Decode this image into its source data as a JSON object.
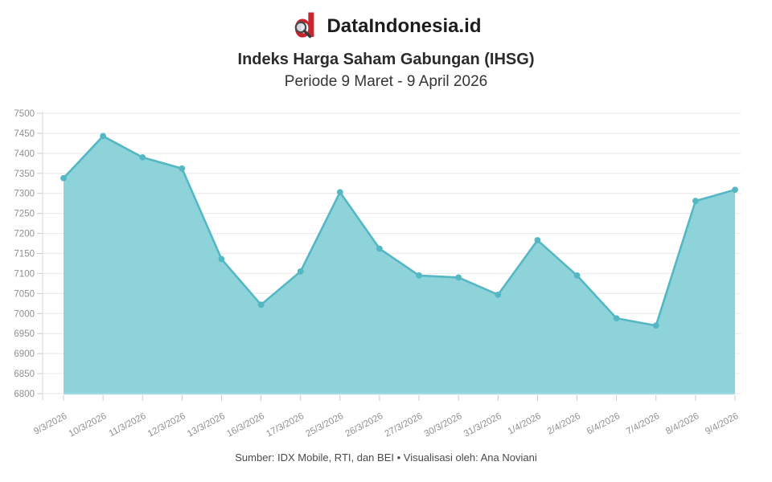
{
  "brand": {
    "name": "DataIndonesia.id",
    "logo_letter": "d",
    "logo_color": "#c62630"
  },
  "header": {
    "title": "Indeks Harga Saham Gabungan (IHSG)",
    "subtitle": "Periode 9 Maret - 9 April 2026"
  },
  "footer": {
    "source": "Sumber: IDX Mobile, RTI, dan BEI • Visualisasi oleh: Ana Noviani"
  },
  "chart_data": {
    "type": "area",
    "title": "Indeks Harga Saham Gabungan (IHSG)",
    "subtitle": "Periode 9 Maret - 9 April 2026",
    "xlabel": "",
    "ylabel": "",
    "categories": [
      "9/3/2026",
      "10/3/2026",
      "11/3/2026",
      "12/3/2026",
      "13/3/2026",
      "16/3/2026",
      "17/3/2026",
      "25/3/2026",
      "26/3/2026",
      "27/3/2026",
      "30/3/2026",
      "31/3/2026",
      "1/4/2026",
      "2/4/2026",
      "6/4/2026",
      "7/4/2026",
      "8/4/2026",
      "9/4/2026"
    ],
    "values": [
      7338,
      7443,
      7390,
      7362,
      7136,
      7022,
      7105,
      7303,
      7162,
      7095,
      7090,
      7047,
      7183,
      7095,
      6988,
      6970,
      7281,
      7309
    ],
    "ylim": [
      6800,
      7500
    ],
    "ytick_step": 50,
    "grid": "horizontal",
    "legend": "none",
    "markers": true,
    "colors": {
      "fill": "#8ed3da",
      "line": "#54b7c4",
      "marker": "#54b7c4",
      "baseline": "#9edbe2",
      "gridline": "#ececec",
      "axis": "#dddddd",
      "tick": "#cccccc",
      "tick_label": "#8f8f8f"
    }
  }
}
